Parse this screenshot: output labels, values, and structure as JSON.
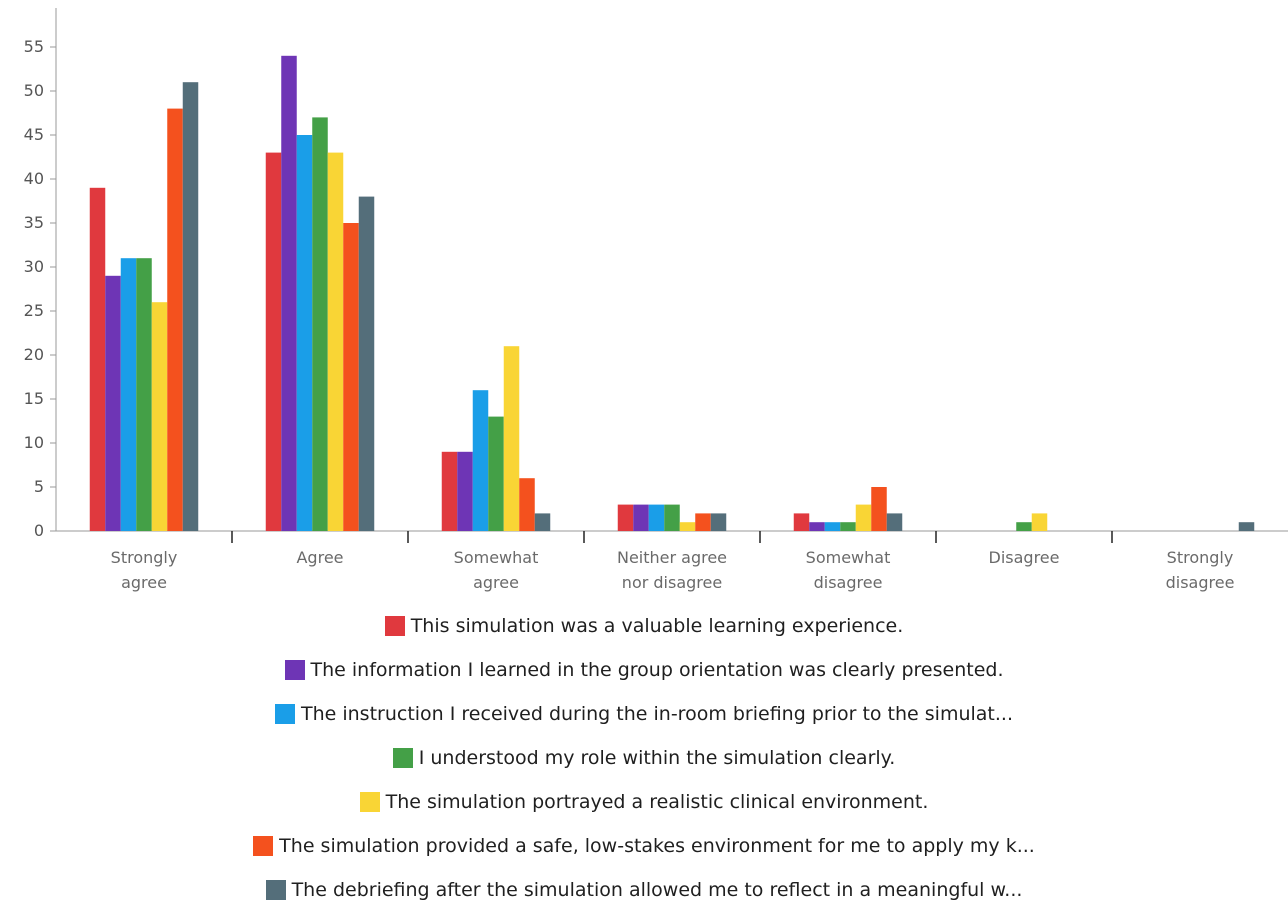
{
  "chart_data": {
    "type": "bar",
    "title": "",
    "xlabel": "",
    "ylabel": "",
    "ylim": [
      0,
      55
    ],
    "yticks": [
      0,
      5,
      10,
      15,
      20,
      25,
      30,
      35,
      40,
      45,
      50,
      55
    ],
    "grid": false,
    "legend_position": "bottom",
    "categories": [
      [
        "Strongly",
        "agree"
      ],
      [
        "Agree"
      ],
      [
        "Somewhat",
        "agree"
      ],
      [
        "Neither agree",
        "nor disagree"
      ],
      [
        "Somewhat",
        "disagree"
      ],
      [
        "Disagree"
      ],
      [
        "Strongly",
        "disagree"
      ]
    ],
    "series": [
      {
        "name": "This simulation was a valuable learning experience.",
        "color": "#e0393e",
        "values": [
          39,
          43,
          9,
          3,
          2,
          0,
          0
        ]
      },
      {
        "name": "The information I learned in the group orientation was clearly presented.",
        "color": "#6e35b5",
        "values": [
          29,
          54,
          9,
          3,
          1,
          0,
          0
        ]
      },
      {
        "name": "The instruction I received during the in-room briefing prior to the simulat...",
        "color": "#1a9ee8",
        "values": [
          31,
          45,
          16,
          3,
          1,
          0,
          0
        ]
      },
      {
        "name": "I understood my role within the simulation clearly.",
        "color": "#44a047",
        "values": [
          31,
          47,
          13,
          3,
          1,
          1,
          0
        ]
      },
      {
        "name": "The simulation portrayed a realistic clinical environment.",
        "color": "#f9d535",
        "values": [
          26,
          43,
          21,
          1,
          3,
          2,
          0
        ]
      },
      {
        "name": "The simulation provided a safe, low-stakes environment for me to apply my k...",
        "color": "#f4511e",
        "values": [
          48,
          35,
          6,
          2,
          5,
          0,
          0
        ]
      },
      {
        "name": "The debriefing after the simulation allowed me to reflect in a meaningful w...",
        "color": "#546e7a",
        "values": [
          51,
          38,
          2,
          2,
          2,
          0,
          1
        ]
      }
    ]
  }
}
